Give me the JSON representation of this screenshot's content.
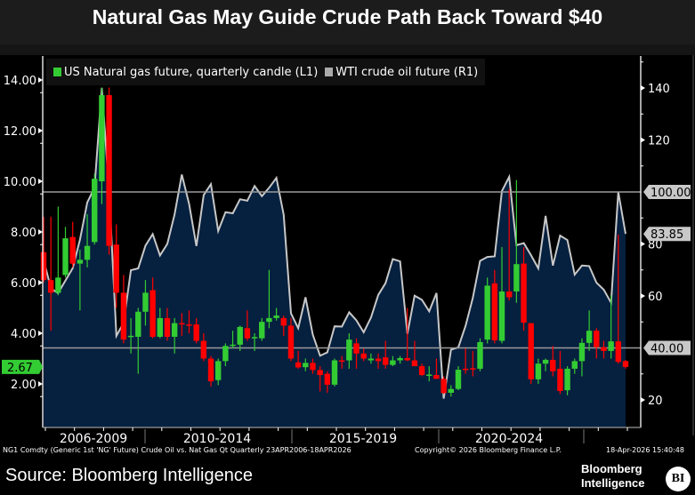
{
  "title": "Natural Gas May Guide Crude Path Back Toward $40",
  "legend": [
    {
      "label": "US Natural gas future, quarterly candle (L1)",
      "color": "#33cc33"
    },
    {
      "label": "WTI crude oil future (R1)",
      "color": "#aaaaaa"
    }
  ],
  "colors": {
    "up": "#33cc33",
    "down": "#ff0000",
    "oil_line": "#c8c8c8",
    "oil_fill": "#06203f",
    "background": "#000000"
  },
  "chart_data": {
    "type": "candlestick+area",
    "title": "Natural Gas May Guide Crude Path Back Toward $40",
    "left_axis": {
      "range": [
        1.0,
        14.8
      ],
      "ticks": [
        "14.00",
        "12.00",
        "10.00",
        "8.00",
        "6.00",
        "4.00",
        "2.00"
      ],
      "last_value_label": "2.67"
    },
    "right_axis": {
      "range": [
        9,
        151
      ],
      "ticks": [
        "140",
        "120",
        "80",
        "60",
        "20"
      ],
      "reference_labels": [
        "100.00",
        "40.00"
      ],
      "last_value_label": "83.85"
    },
    "reference_lines": [
      100,
      40
    ],
    "x_period_labels": [
      "2006-2009",
      "2010-2014",
      "2015-2019",
      "2020-2024"
    ],
    "x_range": [
      "2006Q2",
      "2026Q2"
    ],
    "gas_ohlc": [
      [
        7.2,
        8.6,
        6.0,
        6.1
      ],
      [
        6.1,
        8.6,
        4.1,
        5.6
      ],
      [
        5.6,
        9.0,
        5.5,
        6.2
      ],
      [
        6.3,
        8.2,
        6.2,
        7.75
      ],
      [
        7.8,
        8.4,
        6.6,
        6.75
      ],
      [
        6.75,
        7.3,
        4.9,
        6.9
      ],
      [
        6.9,
        8.7,
        6.6,
        7.45
      ],
      [
        7.6,
        10.3,
        7.5,
        10.1
      ],
      [
        10.0,
        13.7,
        9.1,
        13.4
      ],
      [
        13.4,
        13.7,
        7.1,
        7.45
      ],
      [
        7.5,
        8.3,
        5.0,
        5.6
      ],
      [
        5.6,
        6.3,
        3.6,
        3.75
      ],
      [
        3.85,
        4.6,
        3.2,
        3.9
      ],
      [
        3.86,
        5.0,
        2.4,
        4.85
      ],
      [
        4.85,
        6.1,
        4.3,
        5.6
      ],
      [
        5.7,
        6.2,
        3.8,
        3.86
      ],
      [
        3.86,
        5.0,
        3.8,
        4.6
      ],
      [
        4.6,
        5.0,
        3.7,
        3.86
      ],
      [
        3.86,
        4.6,
        3.2,
        4.4
      ],
      [
        4.4,
        4.8,
        3.9,
        4.35
      ],
      [
        4.35,
        4.9,
        4.0,
        4.3
      ],
      [
        4.35,
        4.6,
        3.6,
        3.7
      ],
      [
        3.7,
        4.0,
        2.9,
        3.0
      ],
      [
        3.0,
        3.1,
        1.9,
        2.1
      ],
      [
        2.15,
        3.0,
        1.95,
        2.9
      ],
      [
        2.9,
        3.6,
        2.7,
        3.5
      ],
      [
        3.5,
        4.1,
        3.4,
        3.55
      ],
      [
        3.55,
        4.3,
        3.3,
        4.25
      ],
      [
        4.2,
        4.9,
        3.7,
        3.8
      ],
      [
        3.8,
        4.0,
        3.3,
        3.85
      ],
      [
        3.8,
        4.6,
        3.7,
        4.45
      ],
      [
        4.45,
        6.5,
        4.2,
        4.6
      ],
      [
        4.6,
        5.0,
        4.5,
        4.7
      ],
      [
        4.6,
        4.7,
        3.9,
        4.3
      ],
      [
        4.3,
        4.6,
        2.9,
        3.0
      ],
      [
        2.85,
        3.3,
        2.6,
        2.65
      ],
      [
        2.66,
        3.0,
        2.5,
        2.83
      ],
      [
        2.83,
        3.0,
        2.4,
        2.55
      ],
      [
        2.55,
        2.7,
        1.7,
        2.35
      ],
      [
        2.4,
        2.5,
        1.65,
        1.97
      ],
      [
        1.97,
        3.0,
        1.9,
        2.93
      ],
      [
        2.93,
        3.1,
        2.6,
        2.9
      ],
      [
        2.93,
        4.0,
        2.6,
        3.75
      ],
      [
        3.6,
        3.8,
        2.6,
        3.2
      ],
      [
        3.2,
        3.4,
        2.9,
        3.0
      ],
      [
        2.93,
        3.2,
        2.8,
        3.0
      ],
      [
        3.0,
        3.2,
        2.6,
        2.9
      ],
      [
        3.05,
        3.7,
        2.6,
        2.75
      ],
      [
        2.75,
        3.1,
        2.7,
        2.93
      ],
      [
        2.93,
        3.1,
        2.8,
        3.02
      ],
      [
        3.02,
        5.0,
        2.9,
        2.93
      ],
      [
        2.93,
        3.7,
        2.7,
        2.7
      ],
      [
        2.7,
        2.8,
        2.3,
        2.35
      ],
      [
        2.35,
        2.7,
        2.1,
        2.37
      ],
      [
        2.35,
        3.0,
        2.2,
        2.2
      ],
      [
        2.2,
        2.3,
        1.6,
        1.64
      ],
      [
        1.65,
        1.95,
        1.5,
        1.8
      ],
      [
        1.8,
        2.7,
        1.75,
        2.56
      ],
      [
        2.6,
        3.4,
        2.4,
        2.55
      ],
      [
        2.62,
        3.3,
        2.3,
        2.6
      ],
      [
        2.6,
        3.8,
        2.5,
        3.65
      ],
      [
        3.75,
        6.2,
        3.6,
        5.88
      ],
      [
        5.97,
        6.5,
        3.6,
        3.72
      ],
      [
        3.7,
        7.4,
        3.6,
        5.65
      ],
      [
        5.65,
        9.7,
        5.3,
        5.42
      ],
      [
        5.65,
        10.05,
        5.2,
        6.73
      ],
      [
        6.75,
        7.4,
        4.1,
        4.42
      ],
      [
        4.4,
        4.4,
        2.0,
        2.18
      ],
      [
        2.18,
        3.0,
        2.0,
        2.8
      ],
      [
        2.8,
        3.0,
        2.5,
        2.95
      ],
      [
        2.95,
        3.5,
        2.3,
        2.5
      ],
      [
        2.6,
        3.3,
        1.6,
        1.72
      ],
      [
        1.75,
        2.7,
        1.55,
        2.6
      ],
      [
        2.6,
        3.0,
        2.4,
        2.9
      ],
      [
        2.9,
        3.8,
        2.3,
        3.62
      ],
      [
        3.62,
        4.9,
        3.3,
        4.1
      ],
      [
        4.1,
        4.2,
        3.0,
        3.45
      ],
      [
        3.45,
        3.7,
        3.0,
        3.3
      ],
      [
        3.3,
        5.5,
        3.0,
        3.68
      ],
      [
        3.68,
        7.9,
        2.8,
        2.87
      ],
      [
        2.9,
        2.95,
        2.6,
        2.67
      ]
    ],
    "wti_close": [
      73.9,
      62.9,
      61.1,
      65.9,
      70.7,
      81.7,
      96.0,
      101.6,
      140.0,
      100.6,
      44.6,
      49.7,
      69.9,
      70.6,
      79.4,
      83.8,
      75.6,
      80.0,
      91.4,
      106.7,
      95.4,
      79.2,
      98.8,
      103.0,
      85.0,
      92.2,
      91.8,
      97.2,
      96.6,
      102.3,
      98.4,
      101.6,
      105.4,
      91.2,
      53.3,
      47.6,
      59.5,
      45.1,
      37.0,
      38.3,
      48.3,
      48.2,
      53.7,
      50.6,
      46.0,
      51.7,
      60.4,
      64.9,
      74.2,
      73.3,
      45.4,
      60.1,
      58.5,
      54.1,
      61.1,
      20.5,
      39.3,
      40.2,
      48.5,
      59.2,
      73.5,
      75.0,
      75.2,
      100.3,
      105.8,
      79.5,
      80.3,
      75.7,
      70.6,
      90.8,
      71.7,
      83.2,
      81.5,
      68.2,
      71.7,
      71.5,
      65.1,
      62.4,
      57.4,
      100.0,
      83.85
    ]
  },
  "footer": {
    "description": "NG1 Comdty (Generic 1st 'NG' Future) Crude Oil vs. Nat Gas Qt Quarterly 23APR2006-18APR2026",
    "copyright": "Copyright© 2026 Bloomberg Finance L.P.",
    "timestamp": "18-Apr-2026 15:40:48"
  },
  "source": "Source: Bloomberg Intelligence",
  "brand": {
    "line1": "Bloomberg",
    "line2": "Intelligence",
    "logo": "BI"
  }
}
